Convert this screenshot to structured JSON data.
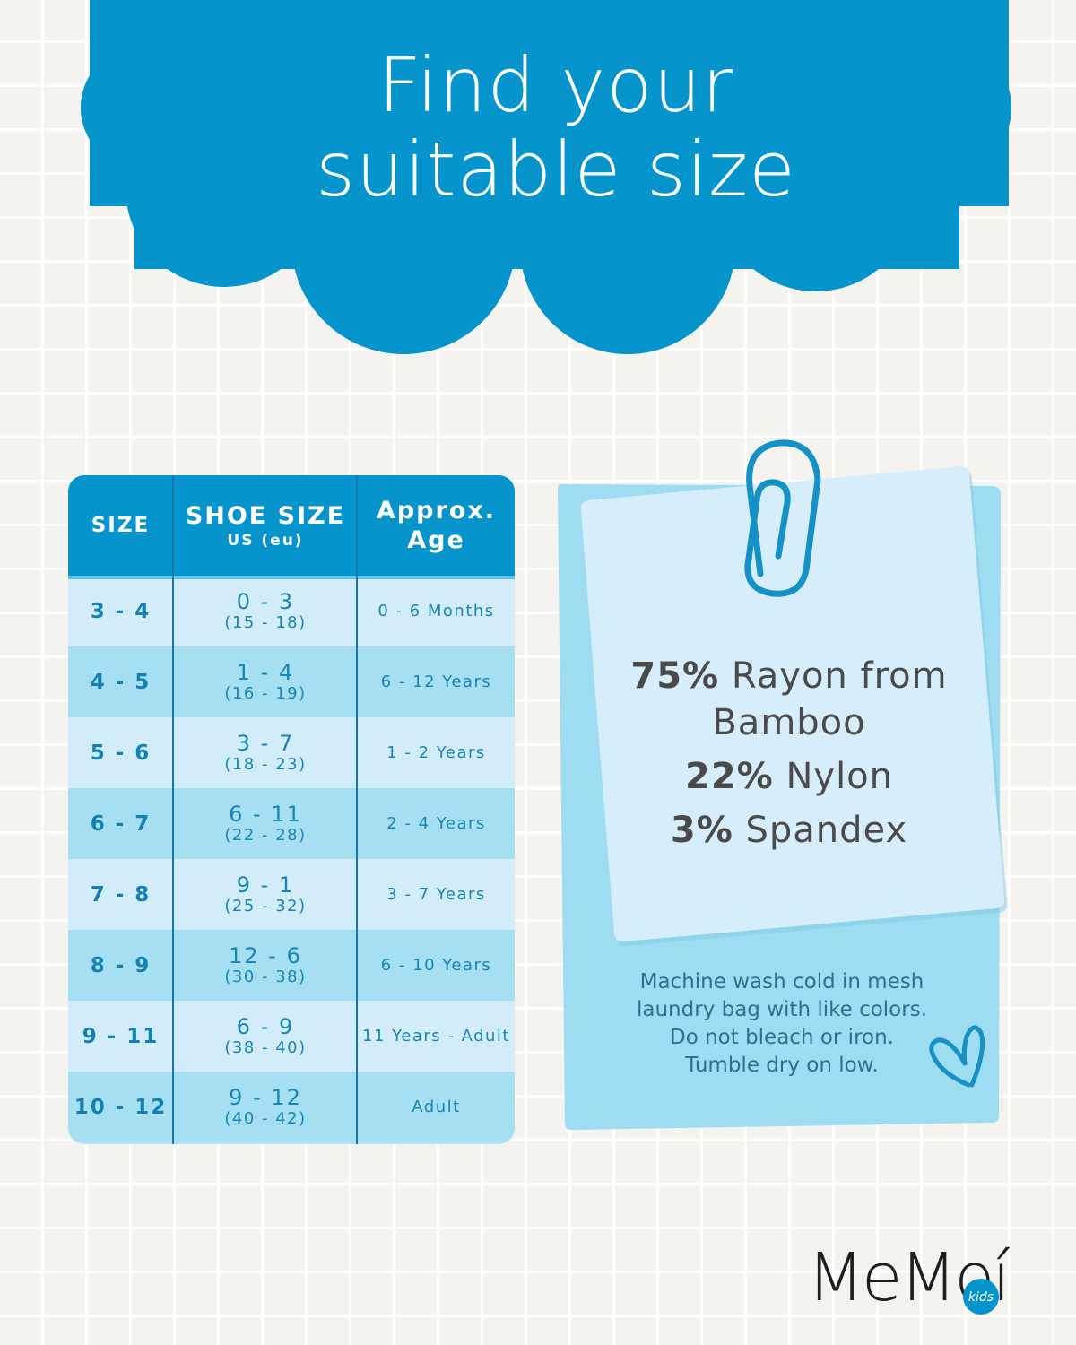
{
  "headline": {
    "line1": "Find your",
    "line2": "suitable size"
  },
  "colors": {
    "brand_blue": "#0694cc",
    "row_light": "#d3ecf9",
    "row_mid": "#a7dff2",
    "text_blue": "#1786b7",
    "card_front": "#d6eefb",
    "card_back": "#9ddcf1"
  },
  "size_table": {
    "headers": {
      "size": "SIZE",
      "shoe_size": "SHOE SIZE",
      "shoe_size_sub": "US (eu)",
      "age_line1": "Approx.",
      "age_line2": "Age"
    },
    "rows": [
      {
        "size": "3 - 4",
        "us": "0 - 3",
        "eu": "(15 - 18)",
        "age": "0 - 6 Months"
      },
      {
        "size": "4 - 5",
        "us": "1 - 4",
        "eu": "(16 - 19)",
        "age": "6 - 12 Years"
      },
      {
        "size": "5 - 6",
        "us": "3 - 7",
        "eu": "(18 - 23)",
        "age": "1 - 2 Years"
      },
      {
        "size": "6 - 7",
        "us": "6 - 11",
        "eu": "(22 - 28)",
        "age": "2 - 4 Years"
      },
      {
        "size": "7 - 8",
        "us": "9 - 1",
        "eu": "(25 - 32)",
        "age": "3 - 7 Years"
      },
      {
        "size": "8 - 9",
        "us": "12 - 6",
        "eu": "(30 - 38)",
        "age": "6 - 10 Years"
      },
      {
        "size": "9 - 11",
        "us": "6 - 9",
        "eu": "(38 - 40)",
        "age": "11 Years - Adult"
      },
      {
        "size": "10 - 12",
        "us": "9 - 12",
        "eu": "(40 - 42)",
        "age": "Adult"
      }
    ]
  },
  "composition": {
    "line1_pct": "75%",
    "line1_text": "Rayon from",
    "line1_cont": "Bamboo",
    "line2_pct": "22%",
    "line2_text": "Nylon",
    "line3_pct": "3%",
    "line3_text": "Spandex"
  },
  "care": {
    "line1": "Machine wash cold in mesh",
    "line2": "laundry bag with like colors.",
    "line3": "Do not bleach or iron.",
    "line4": "Tumble dry on low."
  },
  "logo": {
    "text": "MeMoí",
    "badge": "kids"
  },
  "icons": [
    "cloud-shape",
    "paperclip-icon",
    "heart-doodle-icon"
  ]
}
